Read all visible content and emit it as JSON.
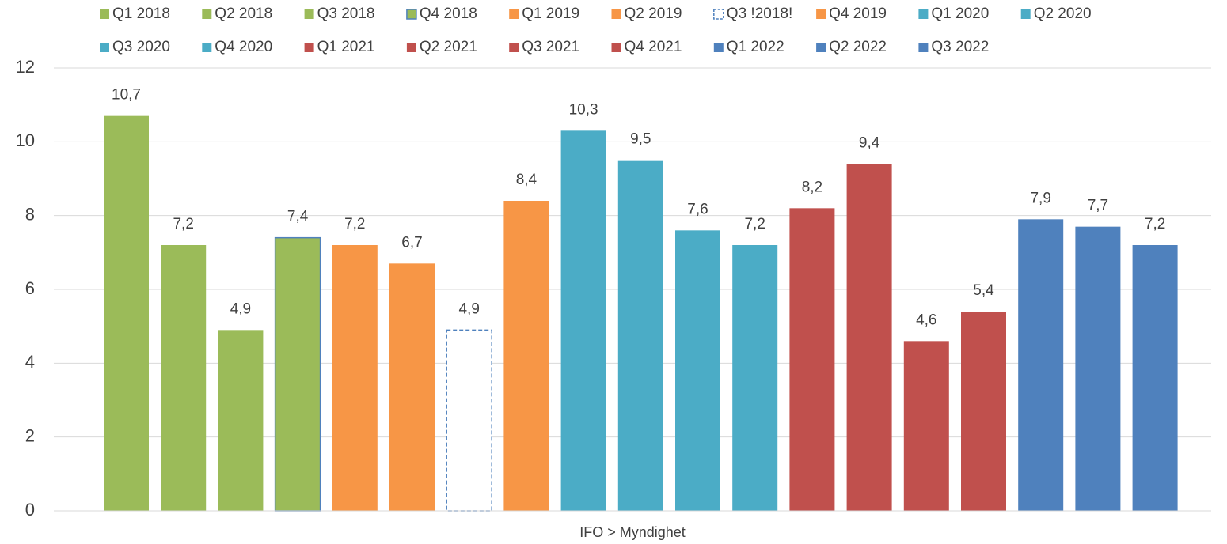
{
  "chart_data": {
    "type": "bar",
    "categories": [
      "IFO > Myndighet"
    ],
    "ylim": [
      0,
      12
    ],
    "yticks": [
      0,
      2,
      4,
      6,
      8,
      10,
      12
    ],
    "grid": true,
    "legend": "top",
    "series": [
      {
        "name": "Q1 2018",
        "color": "#9bbb59",
        "values": [
          10.7
        ],
        "value_labels": [
          "10,7"
        ]
      },
      {
        "name": "Q2 2018",
        "color": "#9bbb59",
        "values": [
          7.2
        ],
        "value_labels": [
          "7,2"
        ]
      },
      {
        "name": "Q3 2018",
        "color": "#9bbb59",
        "values": [
          4.9
        ],
        "value_labels": [
          "4,9"
        ]
      },
      {
        "name": "Q4 2018",
        "color": "#9bbb59",
        "stroke": "#4f81bd",
        "values": [
          7.4
        ],
        "value_labels": [
          "7,4"
        ]
      },
      {
        "name": "Q1 2019",
        "color": "#f79646",
        "values": [
          7.2
        ],
        "value_labels": [
          "7,2"
        ]
      },
      {
        "name": "Q2 2019",
        "color": "#f79646",
        "values": [
          6.7
        ],
        "value_labels": [
          "6,7"
        ]
      },
      {
        "name": "Q3 !2018!",
        "color": "#ffffff",
        "stroke": "#4f81bd",
        "dashed": true,
        "values": [
          4.9
        ],
        "value_labels": [
          "4,9"
        ]
      },
      {
        "name": "Q4 2019",
        "color": "#f79646",
        "values": [
          8.4
        ],
        "value_labels": [
          "8,4"
        ]
      },
      {
        "name": "Q1 2020",
        "color": "#4bacc6",
        "values": [
          10.3
        ],
        "value_labels": [
          "10,3"
        ]
      },
      {
        "name": "Q2 2020",
        "color": "#4bacc6",
        "values": [
          9.5
        ],
        "value_labels": [
          "9,5"
        ]
      },
      {
        "name": "Q3 2020",
        "color": "#4bacc6",
        "values": [
          7.6
        ],
        "value_labels": [
          "7,6"
        ]
      },
      {
        "name": "Q4 2020",
        "color": "#4bacc6",
        "values": [
          7.2
        ],
        "value_labels": [
          "7,2"
        ]
      },
      {
        "name": "Q1 2021",
        "color": "#c0504d",
        "values": [
          8.2
        ],
        "value_labels": [
          "8,2"
        ]
      },
      {
        "name": "Q2 2021",
        "color": "#c0504d",
        "values": [
          9.4
        ],
        "value_labels": [
          "9,4"
        ]
      },
      {
        "name": "Q3 2021",
        "color": "#c0504d",
        "values": [
          4.6
        ],
        "value_labels": [
          "4,6"
        ]
      },
      {
        "name": "Q4 2021",
        "color": "#c0504d",
        "values": [
          5.4
        ],
        "value_labels": [
          "5,4"
        ]
      },
      {
        "name": "Q1 2022",
        "color": "#4f81bd",
        "values": [
          7.9
        ],
        "value_labels": [
          "7,9"
        ]
      },
      {
        "name": "Q2 2022",
        "color": "#4f81bd",
        "values": [
          7.7
        ],
        "value_labels": [
          "7,7"
        ]
      },
      {
        "name": "Q3 2022",
        "color": "#4f81bd",
        "values": [
          7.2
        ],
        "value_labels": [
          "7,2"
        ]
      }
    ]
  }
}
